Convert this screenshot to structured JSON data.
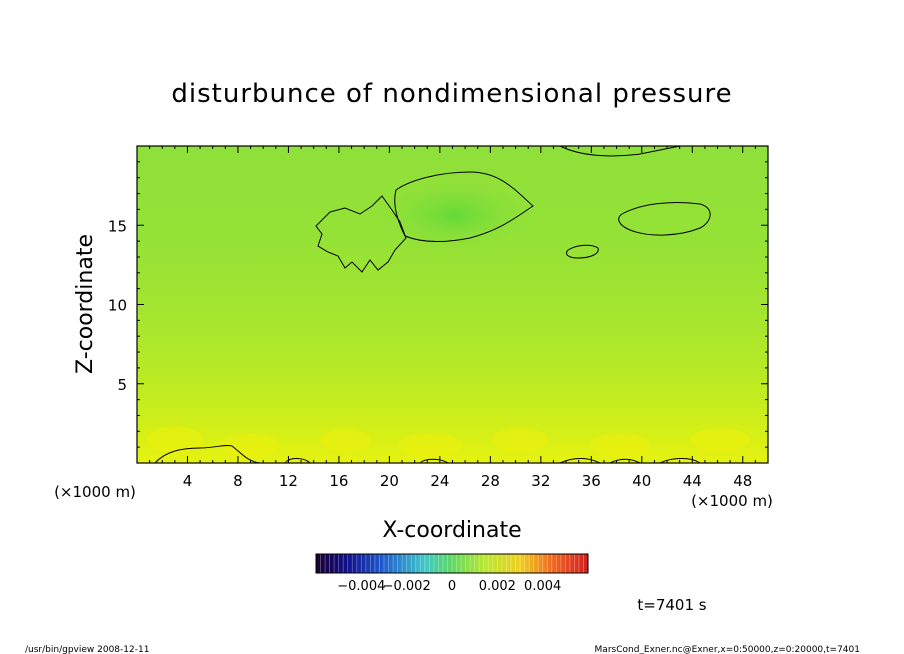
{
  "chart_data": {
    "type": "heatmap",
    "title": "disturbunce of nondimensional pressure",
    "xlabel": "X-coordinate",
    "ylabel": "Z-coordinate",
    "x_unit_left": "(×1000 m)",
    "x_unit_right": "(×1000 m)",
    "xlim": [
      0,
      50
    ],
    "ylim": [
      0,
      20
    ],
    "x_ticks": [
      4,
      8,
      12,
      16,
      20,
      24,
      28,
      32,
      36,
      40,
      44,
      48
    ],
    "x_tick_labels": [
      "4",
      "8",
      "12",
      "16",
      "20",
      "24",
      "28",
      "32",
      "36",
      "40",
      "44",
      "48"
    ],
    "y_ticks": [
      5,
      10,
      15
    ],
    "y_tick_labels": [
      "5",
      "10",
      "15"
    ],
    "colorbar": {
      "range": [
        -0.006,
        0.006
      ],
      "tick_values": [
        -0.004,
        -0.002,
        0,
        0.002,
        0.004
      ],
      "tick_labels": [
        "−0.004",
        "−0.002",
        "0",
        "0.002",
        "0.004"
      ]
    },
    "grid": false,
    "time_label": "t=7401 s",
    "field_description_rows": [
      {
        "z": 19.5,
        "value": 0.0008
      },
      {
        "z": 15,
        "value": 0.0012
      },
      {
        "z": 10,
        "value": 0.0016
      },
      {
        "z": 5,
        "value": 0.0022
      },
      {
        "z": 0.5,
        "value": 0.0034
      }
    ]
  },
  "footer": {
    "left": "/usr/bin/gpview   2008-12-11",
    "right": "MarsCond_Exner.nc@Exner,x=0:50000,z=0:20000,t=7401"
  }
}
